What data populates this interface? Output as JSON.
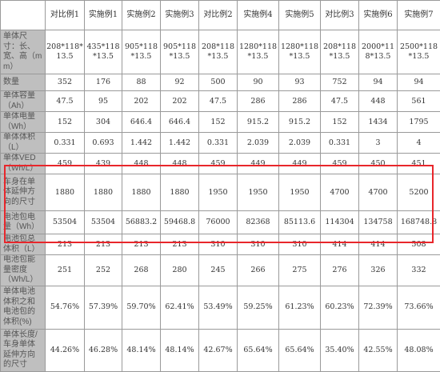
{
  "table": {
    "columns": [
      "",
      "对比例1",
      "实施例1",
      "实施例2",
      "实施例3",
      "对比例2",
      "实施例4",
      "实施例5",
      "对比例3",
      "实施例6",
      "实施例7"
    ],
    "rows": [
      {
        "label": "单体尺寸：长、宽、高（mm）",
        "values": [
          "208*118*13.5",
          "435*118*13.5",
          "905*118*13.5",
          "905*118*13.5",
          "208*118*13.5",
          "1280*118*13.5",
          "1280*118*13.5",
          "208*118*13.5",
          "2000*118*13.5",
          "2500*118*13.5"
        ]
      },
      {
        "label": "数量",
        "values": [
          "352",
          "176",
          "88",
          "92",
          "500",
          "90",
          "93",
          "752",
          "94",
          "94"
        ]
      },
      {
        "label": "单体容量（Ah）",
        "values": [
          "47.5",
          "95",
          "202",
          "202",
          "47.5",
          "286",
          "286",
          "47.5",
          "448",
          "561"
        ]
      },
      {
        "label": "单体电量（Wh）",
        "values": [
          "152",
          "304",
          "646.4",
          "646.4",
          "152",
          "915.2",
          "915.2",
          "152",
          "1434",
          "1795"
        ]
      },
      {
        "label": "单体体积（L）",
        "values": [
          "0.331",
          "0.693",
          "1.442",
          "1.442",
          "0.331",
          "2.039",
          "2.039",
          "0.331",
          "3",
          "4"
        ]
      },
      {
        "label": "单体VED（Wh/L）",
        "values": [
          "459",
          "439",
          "448",
          "448",
          "459",
          "449",
          "449",
          "459",
          "450",
          "451"
        ]
      },
      {
        "label": "车身在单体延伸方向的尺寸",
        "values": [
          "1880",
          "1880",
          "1880",
          "1880",
          "1950",
          "1950",
          "1950",
          "4700",
          "4700",
          "5200"
        ]
      },
      {
        "label": "电池包电量（Wh）",
        "values": [
          "53504",
          "53504",
          "56883.2",
          "59468.8",
          "76000",
          "82368",
          "85113.6",
          "114304",
          "134758",
          "168748.8"
        ]
      },
      {
        "label": "电池包总体积（L）",
        "values": [
          "213",
          "213",
          "213",
          "213",
          "310",
          "310",
          "310",
          "414",
          "414",
          "508"
        ]
      },
      {
        "label": "电池包能量密度（Wh/L）",
        "values": [
          "251",
          "252",
          "268",
          "280",
          "245",
          "266",
          "275",
          "276",
          "326",
          "332"
        ]
      },
      {
        "label": "单体电池体积之和电池包的体积(%)",
        "values": [
          "54.76%",
          "57.39%",
          "59.70%",
          "62.41%",
          "53.49%",
          "59.25%",
          "61.23%",
          "60.23%",
          "72.39%",
          "73.66%"
        ]
      },
      {
        "label": "单体长度/车身单体延伸方向的尺寸",
        "values": [
          "44.26%",
          "46.28%",
          "48.14%",
          "48.14%",
          "42.67%",
          "65.64%",
          "65.64%",
          "35.40%",
          "42.55%",
          "48.08%"
        ]
      }
    ]
  },
  "colors": {
    "label_bg": "#bfbfbf",
    "highlight_border": "#e8262b",
    "grid": "#9a9a9a"
  }
}
